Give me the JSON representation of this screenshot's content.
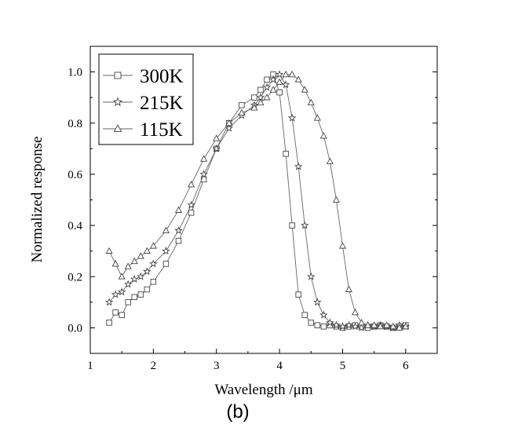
{
  "chart_data": {
    "type": "line",
    "title": "",
    "xlabel": "Wavelength /μm",
    "ylabel": "Normalized response",
    "panel_label": "(b)",
    "xlim": [
      1,
      6.5
    ],
    "ylim": [
      -0.1,
      1.1
    ],
    "xticks": [
      "1",
      "2",
      "3",
      "4",
      "5",
      "6"
    ],
    "yticks": [
      "0.0",
      "0.2",
      "0.4",
      "0.6",
      "0.8",
      "1.0"
    ],
    "grid": false,
    "legend_position": "top-left",
    "x": [
      1.3,
      1.4,
      1.5,
      1.6,
      1.7,
      1.8,
      1.9,
      2.0,
      2.2,
      2.4,
      2.6,
      2.8,
      3.0,
      3.2,
      3.4,
      3.6,
      3.7,
      3.8,
      3.9,
      4.0,
      4.1,
      4.2,
      4.3,
      4.4,
      4.5,
      4.6,
      4.7,
      4.8,
      4.9,
      5.0,
      5.1,
      5.2,
      5.3,
      5.4,
      5.5,
      5.6,
      5.7,
      5.8,
      5.9,
      6.0
    ],
    "series": [
      {
        "name": "300K",
        "marker": "square",
        "values": [
          0.02,
          0.06,
          0.05,
          0.1,
          0.12,
          0.13,
          0.15,
          0.18,
          0.25,
          0.34,
          0.45,
          0.58,
          0.7,
          0.8,
          0.87,
          0.9,
          0.93,
          0.97,
          0.99,
          0.92,
          0.68,
          0.4,
          0.13,
          0.05,
          0.02,
          0.01,
          0.005,
          0.01,
          0.005,
          0.0,
          0.005,
          0.01,
          0.005,
          0.0,
          0.005,
          0.01,
          0.005,
          0.0,
          0.005,
          0.01
        ]
      },
      {
        "name": "215K",
        "marker": "star",
        "values": [
          0.1,
          0.13,
          0.14,
          0.17,
          0.19,
          0.2,
          0.22,
          0.25,
          0.3,
          0.38,
          0.48,
          0.6,
          0.7,
          0.78,
          0.83,
          0.87,
          0.9,
          0.94,
          0.97,
          0.99,
          0.95,
          0.82,
          0.63,
          0.4,
          0.2,
          0.1,
          0.05,
          0.02,
          0.01,
          0.005,
          0.01,
          0.005,
          0.0,
          0.01,
          0.005,
          0.01,
          0.005,
          0.0,
          0.01,
          0.005
        ]
      },
      {
        "name": "115K",
        "marker": "triangle",
        "values": [
          0.3,
          0.25,
          0.2,
          0.24,
          0.26,
          0.28,
          0.3,
          0.32,
          0.38,
          0.46,
          0.56,
          0.66,
          0.74,
          0.8,
          0.84,
          0.86,
          0.88,
          0.9,
          0.93,
          0.96,
          0.99,
          0.99,
          0.97,
          0.93,
          0.88,
          0.82,
          0.75,
          0.65,
          0.5,
          0.32,
          0.15,
          0.06,
          0.02,
          0.01,
          0.01,
          0.005,
          0.01,
          0.005,
          0.0,
          0.005
        ]
      }
    ]
  }
}
